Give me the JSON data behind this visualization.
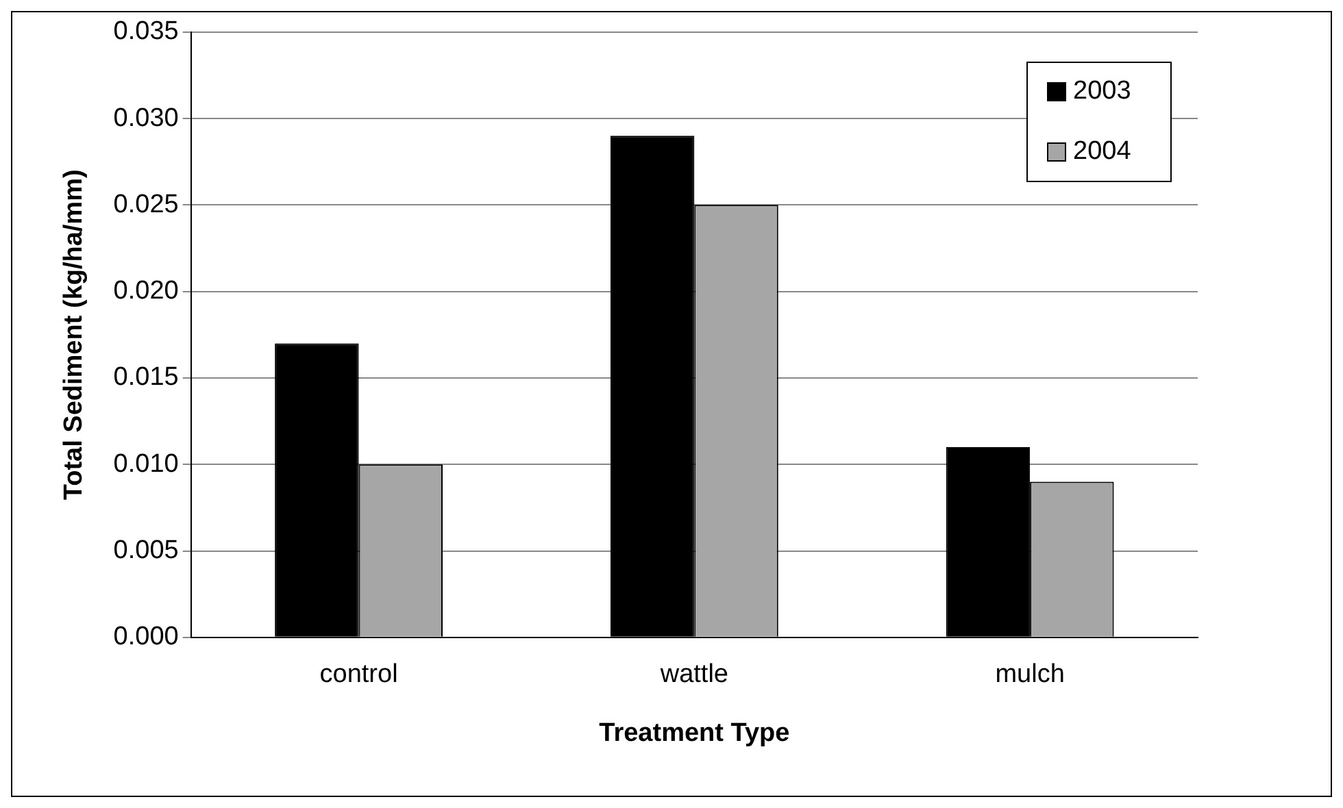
{
  "chart_data": {
    "type": "bar",
    "xlabel": "Treatment Type",
    "ylabel": "Total Sediment (kg/ha/mm)",
    "categories": [
      "control",
      "wattle",
      "mulch"
    ],
    "series": [
      {
        "name": "2003",
        "color": "#000000",
        "values": [
          0.017,
          0.029,
          0.011
        ]
      },
      {
        "name": "2004",
        "color": "#a6a6a6",
        "values": [
          0.01,
          0.025,
          0.009
        ]
      }
    ],
    "ylim": [
      0,
      0.035
    ],
    "yticks": [
      {
        "value": 0,
        "label": "0.000"
      },
      {
        "value": 0.005,
        "label": "0.005"
      },
      {
        "value": 0.01,
        "label": "0.010"
      },
      {
        "value": 0.015,
        "label": "0.015"
      },
      {
        "value": 0.02,
        "label": "0.020"
      },
      {
        "value": 0.025,
        "label": "0.025"
      },
      {
        "value": 0.03,
        "label": "0.030"
      },
      {
        "value": 0.035,
        "label": "0.035"
      }
    ],
    "grid": "y",
    "legend": "top right"
  }
}
